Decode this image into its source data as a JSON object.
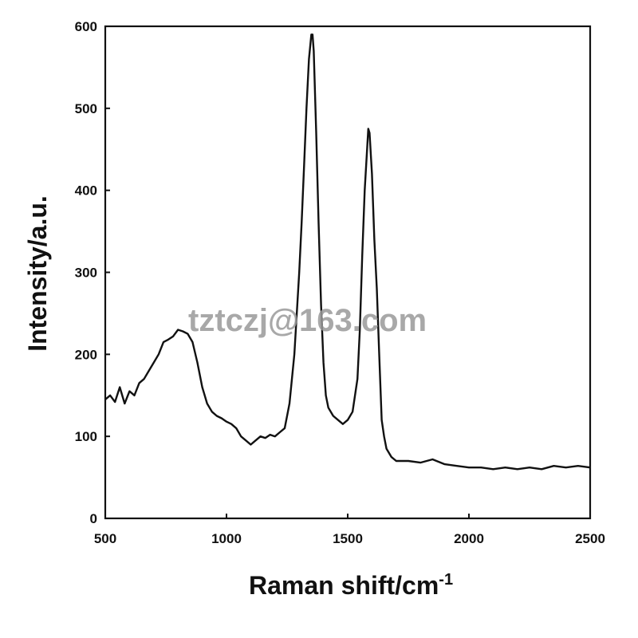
{
  "chart_data": {
    "type": "line",
    "title": "",
    "xlabel": "Raman shift/cm",
    "xlabel_superscript": "-1",
    "ylabel": "Intensity/a.u.",
    "xlim": [
      500,
      2500
    ],
    "ylim": [
      0,
      600
    ],
    "x_ticks": [
      500,
      1000,
      1500,
      2000,
      2500
    ],
    "y_ticks": [
      0,
      100,
      200,
      300,
      400,
      500,
      600
    ],
    "grid": false,
    "legend": "none",
    "line_color": "#111111",
    "series": [
      {
        "x": [
          500,
          520,
          540,
          560,
          580,
          600,
          620,
          640,
          660,
          680,
          700,
          720,
          740,
          760,
          780,
          800,
          820,
          840,
          860,
          880,
          900,
          920,
          940,
          960,
          980,
          1000,
          1020,
          1040,
          1060,
          1080,
          1100,
          1120,
          1140,
          1160,
          1180,
          1200,
          1220,
          1240,
          1260,
          1280,
          1300,
          1310,
          1320,
          1330,
          1340,
          1350,
          1355,
          1360,
          1370,
          1380,
          1390,
          1400,
          1410,
          1420,
          1440,
          1460,
          1480,
          1500,
          1520,
          1540,
          1550,
          1560,
          1570,
          1580,
          1585,
          1590,
          1600,
          1610,
          1620,
          1630,
          1640,
          1650,
          1660,
          1680,
          1700,
          1750,
          1800,
          1850,
          1900,
          1950,
          2000,
          2050,
          2100,
          2150,
          2200,
          2250,
          2300,
          2350,
          2400,
          2450,
          2500
        ],
        "values": [
          145,
          150,
          142,
          160,
          140,
          155,
          150,
          165,
          170,
          180,
          190,
          200,
          215,
          218,
          222,
          230,
          228,
          225,
          215,
          190,
          160,
          140,
          130,
          125,
          122,
          118,
          115,
          110,
          100,
          95,
          90,
          95,
          100,
          98,
          102,
          100,
          105,
          110,
          140,
          200,
          300,
          360,
          430,
          500,
          560,
          590,
          590,
          570,
          470,
          360,
          260,
          190,
          150,
          135,
          125,
          120,
          115,
          120,
          130,
          170,
          230,
          320,
          400,
          450,
          475,
          470,
          420,
          340,
          280,
          200,
          120,
          100,
          85,
          75,
          70,
          70,
          68,
          72,
          66,
          64,
          62,
          62,
          60,
          62,
          60,
          62,
          60,
          64,
          62,
          64,
          62
        ]
      }
    ],
    "watermark": "tztczj@163.com"
  }
}
